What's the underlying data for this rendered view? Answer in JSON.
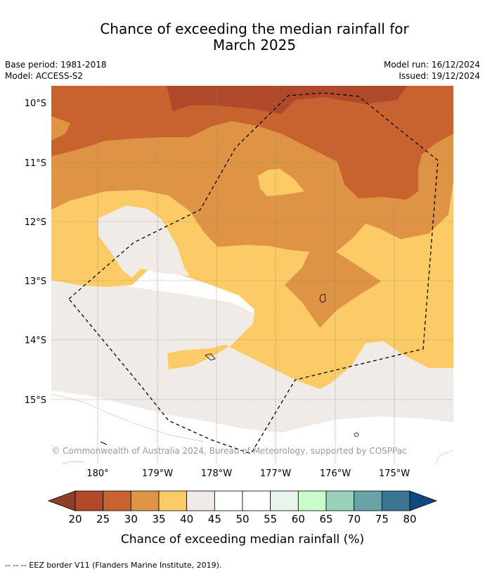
{
  "title_line1": "Chance of exceeding the median rainfall for",
  "title_line2": "March 2025",
  "base_period": "Base period: 1981-2018",
  "model": "Model: ACCESS-S2",
  "model_run": "Model run: 16/12/2024",
  "issued": "Issued: 19/12/2024",
  "copyright": "© Commonwealth of Australia 2024, Bureau of Meteorology, supported by COSPPac",
  "lat_labels": [
    "10°S",
    "11°S",
    "12°S",
    "13°S",
    "14°S",
    "15°S"
  ],
  "lon_labels": [
    "180°",
    "179°W",
    "178°W",
    "177°W",
    "176°W",
    "175°W"
  ],
  "colorbar": {
    "ticks": [
      "20",
      "25",
      "30",
      "35",
      "40",
      "45",
      "50",
      "55",
      "60",
      "65",
      "70",
      "75",
      "80"
    ],
    "colors": [
      "#b0492a",
      "#c8622f",
      "#de9345",
      "#fdcb66",
      "#f0ebe6",
      "#ffffff",
      "#ffffff",
      "#eaf5ea",
      "#c8fcc8",
      "#9ad0b8",
      "#6aa3a6",
      "#3c7494"
    ],
    "under_color": "#8e3f2a",
    "over_color": "#0f4a7e",
    "label": "Chance of exceeding median rainfall (%)"
  },
  "footnote": "-- -- -- EEZ border V11 (Flanders Marine Institute, 2019)."
}
